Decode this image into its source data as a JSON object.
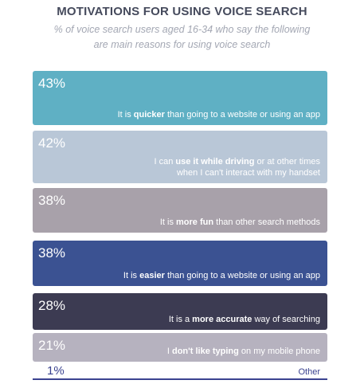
{
  "title": "MOTIVATIONS FOR USING VOICE SEARCH",
  "subtitle_line1": "% of voice search users aged 16-34 who say the following",
  "subtitle_line2": "are main reasons for using voice search",
  "chart_data": {
    "type": "bar",
    "title": "MOTIVATIONS FOR USING VOICE SEARCH",
    "subtitle": "% of voice search users aged 16-34 who say the following are main reasons for using voice search",
    "categories": [
      "It is quicker than going to a website or using an app",
      "I can use it while driving or at other times when I can't interact with my handset",
      "It is more fun than other search methods",
      "It is easier than going to a website or using an app",
      "It is a more accurate way of searching",
      "I don't like typing on my mobile phone",
      "Other"
    ],
    "values": [
      43,
      42,
      38,
      38,
      28,
      21,
      1
    ],
    "value_labels": [
      "43%",
      "42%",
      "38%",
      "38%",
      "28%",
      "21%",
      "1%"
    ],
    "colors": [
      "#5fb0c4",
      "#b9c7d7",
      "#a8a1aa",
      "#3b5292",
      "#3c3b52",
      "#b6b2bf",
      "#3b4390"
    ]
  },
  "bars": [
    {
      "pct": "43%",
      "pre": "It is ",
      "bold": "quicker",
      "post": " than going to a website or using an app",
      "line2": ""
    },
    {
      "pct": "42%",
      "pre": "I can ",
      "bold": "use it while driving",
      "post": " or at other times",
      "line2": "when I can't interact with my handset"
    },
    {
      "pct": "38%",
      "pre": "It is ",
      "bold": "more fun",
      "post": " than other search methods",
      "line2": ""
    },
    {
      "pct": "38%",
      "pre": "It is ",
      "bold": "easier",
      "post": " than going to a website or using an app",
      "line2": ""
    },
    {
      "pct": "28%",
      "pre": "It is a ",
      "bold": "more accurate",
      "post": " way of searching",
      "line2": ""
    },
    {
      "pct": "21%",
      "pre": "I ",
      "bold": "don't like typing",
      "post": " on my mobile phone",
      "line2": ""
    }
  ],
  "other": {
    "pct": "1%",
    "label": "Other"
  }
}
